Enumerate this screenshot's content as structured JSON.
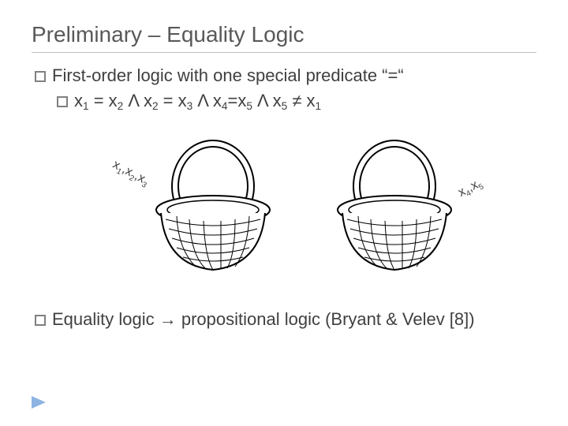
{
  "title": "Preliminary – Equality Logic",
  "line1_prefix": "First-order logic with one special predicate “=“",
  "line2_html": "x<sub>1</sub> = x<sub>2</sub> Λ x<sub>2</sub> = x<sub>3</sub> Λ x<sub>4</sub>=x<sub>5</sub> Λ x<sub>5</sub> ≠ x<sub>1</sub>",
  "label_left_html": "x<sub>1</sub>,x<sub>2</sub>,x<sub>3</sub>",
  "label_right_html": "x<sub>4</sub>,x<sub>5</sub>",
  "conclusion_html": "Equality logic → propositional logic (Bryant & Velev [8])",
  "basket": {
    "stroke": "#000000",
    "fill_band": "#ffffff"
  },
  "colors": {
    "title": "#595959",
    "text": "#404040",
    "rule": "#bfbfbf",
    "folio_fill": "#8eb4e3",
    "folio_stroke": "#8eb4e3"
  }
}
